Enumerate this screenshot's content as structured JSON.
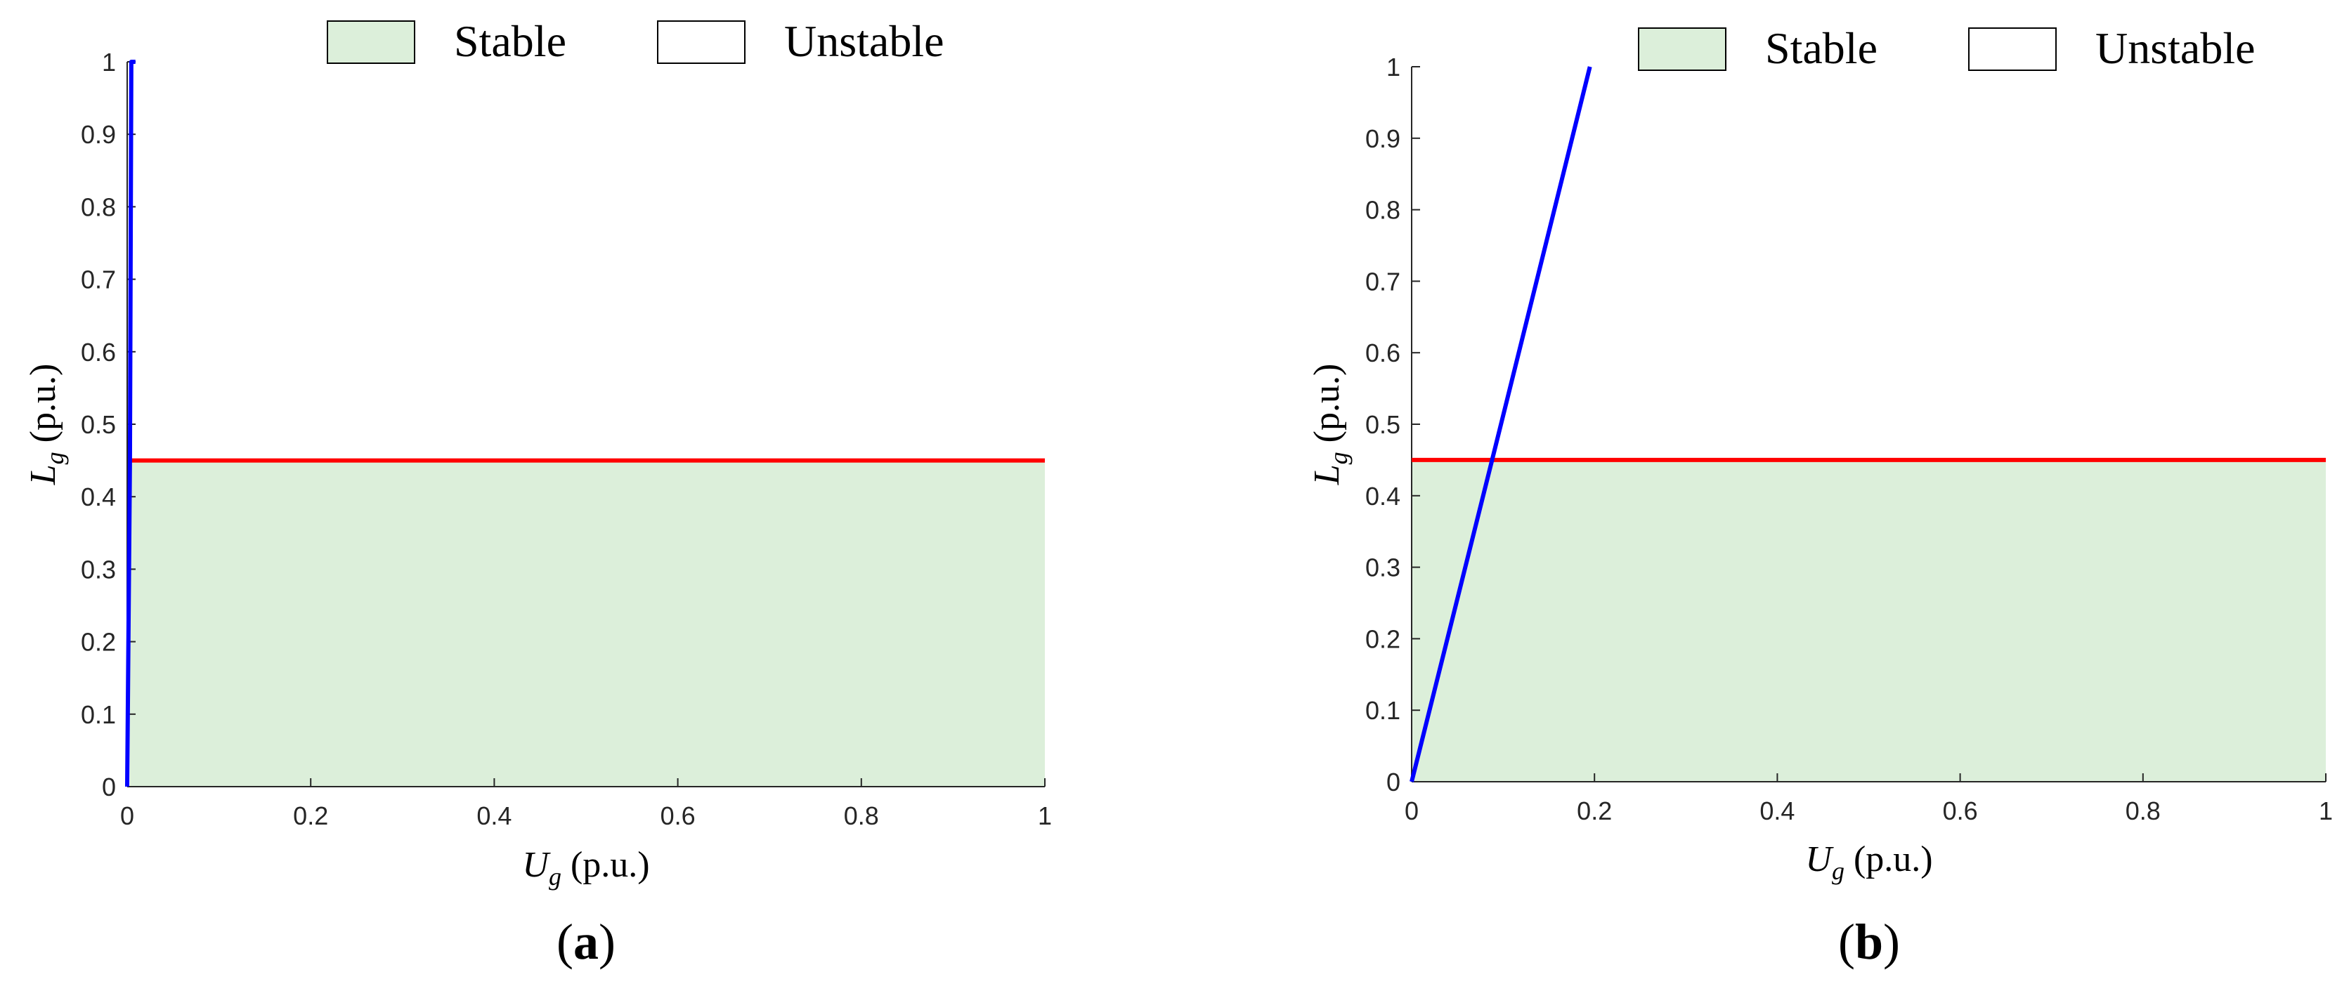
{
  "chart_data": [
    {
      "type": "area",
      "panel_label": "(a)",
      "panel_letter": "a",
      "xlabel": {
        "symbol": "U",
        "subscript": "g",
        "unit": "(p.u.)"
      },
      "ylabel": {
        "symbol": "L",
        "subscript": "g",
        "unit": "(p.u.)"
      },
      "xlim": [
        0,
        1
      ],
      "ylim": [
        0,
        1
      ],
      "xticks": [
        "0",
        "0.2",
        "0.4",
        "0.6",
        "0.8",
        "1"
      ],
      "yticks": [
        "0",
        "0.1",
        "0.2",
        "0.3",
        "0.4",
        "0.5",
        "0.6",
        "0.7",
        "0.8",
        "0.9",
        "1"
      ],
      "grid": false,
      "legend": {
        "placement": "top",
        "entries": [
          {
            "label": "Stable",
            "fill": "#dcefda"
          },
          {
            "label": "Unstable",
            "fill": "#ffffff"
          }
        ]
      },
      "stable_region": {
        "x": [
          0.003,
          1
        ],
        "y": [
          0,
          0.45
        ]
      },
      "series": [
        {
          "color": "#ff0000",
          "x": [
            0.003,
            1
          ],
          "y": [
            0.45,
            0.45
          ]
        },
        {
          "color": "#0000ff",
          "x": [
            0,
            0.003,
            0.0045,
            0.009
          ],
          "y": [
            0,
            0.45,
            1,
            1
          ]
        }
      ]
    },
    {
      "type": "area",
      "panel_label": "(b)",
      "panel_letter": "b",
      "xlabel": {
        "symbol": "U",
        "subscript": "g",
        "unit": "(p.u.)"
      },
      "ylabel": {
        "symbol": "L",
        "subscript": "g",
        "unit": "(p.u.)"
      },
      "xlim": [
        0,
        1
      ],
      "ylim": [
        0,
        1
      ],
      "xticks": [
        "0",
        "0.2",
        "0.4",
        "0.6",
        "0.8",
        "1"
      ],
      "yticks": [
        "0",
        "0.1",
        "0.2",
        "0.3",
        "0.4",
        "0.5",
        "0.6",
        "0.7",
        "0.8",
        "0.9",
        "1"
      ],
      "grid": false,
      "legend": {
        "placement": "top",
        "entries": [
          {
            "label": "Stable",
            "fill": "#dcefda"
          },
          {
            "label": "Unstable",
            "fill": "#ffffff"
          }
        ]
      },
      "stable_region": {
        "x": [
          0,
          1
        ],
        "y": [
          0,
          0.45
        ]
      },
      "series": [
        {
          "color": "#ff0000",
          "x": [
            0,
            1
          ],
          "y": [
            0.45,
            0.45
          ]
        },
        {
          "color": "#0000ff",
          "x": [
            0,
            0.088,
            0.195
          ],
          "y": [
            0,
            0.45,
            1
          ]
        }
      ]
    }
  ]
}
